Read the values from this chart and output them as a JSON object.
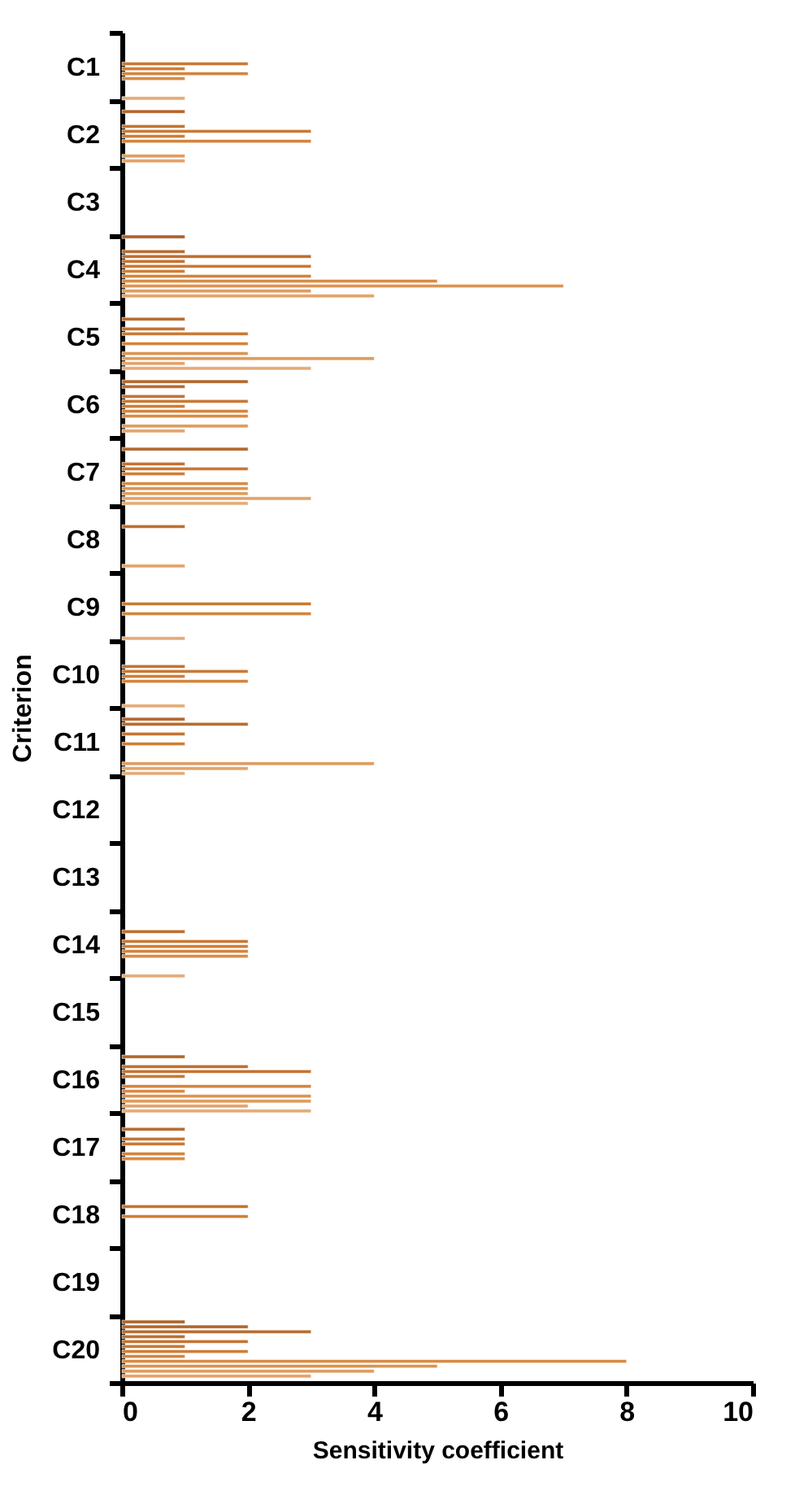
{
  "chart_data": {
    "type": "bar",
    "orientation": "horizontal",
    "xlabel": "Sensitivity coefficient",
    "ylabel": "Criterion",
    "categories": [
      "C1",
      "C2",
      "C3",
      "C4",
      "C5",
      "C6",
      "C7",
      "C8",
      "C9",
      "C10",
      "C11",
      "C12",
      "C13",
      "C14",
      "C15",
      "C16",
      "C17",
      "C18",
      "C19",
      "C20"
    ],
    "xlim": [
      0,
      10
    ],
    "xticks": [
      0,
      2,
      4,
      6,
      8,
      10
    ],
    "grid": false,
    "legend": false,
    "series": [
      {
        "color": "#a9602b",
        "values": [
          null,
          null,
          null,
          1,
          null,
          null,
          null,
          null,
          null,
          null,
          null,
          null,
          null,
          null,
          null,
          null,
          null,
          null,
          null,
          null
        ]
      },
      {
        "color": "#ad632c",
        "values": [
          null,
          null,
          null,
          null,
          null,
          null,
          null,
          null,
          null,
          null,
          null,
          null,
          null,
          null,
          null,
          null,
          null,
          null,
          null,
          1
        ]
      },
      {
        "color": "#b2672d",
        "values": [
          null,
          1,
          null,
          null,
          null,
          2,
          2,
          null,
          null,
          null,
          1,
          null,
          null,
          null,
          null,
          1,
          null,
          null,
          null,
          2
        ]
      },
      {
        "color": "#b76b2e",
        "values": [
          null,
          null,
          null,
          1,
          1,
          1,
          null,
          null,
          null,
          null,
          2,
          null,
          null,
          null,
          null,
          null,
          1,
          null,
          null,
          3
        ]
      },
      {
        "color": "#bd6f30",
        "values": [
          null,
          null,
          null,
          3,
          null,
          null,
          null,
          1,
          null,
          null,
          null,
          null,
          null,
          1,
          null,
          2,
          null,
          null,
          null,
          1
        ]
      },
      {
        "color": "#c37432",
        "values": [
          null,
          1,
          null,
          1,
          1,
          1,
          1,
          null,
          null,
          1,
          1,
          null,
          null,
          null,
          null,
          3,
          1,
          2,
          null,
          2
        ]
      },
      {
        "color": "#c97934",
        "values": [
          2,
          3,
          null,
          3,
          2,
          2,
          2,
          null,
          3,
          2,
          null,
          null,
          null,
          2,
          null,
          1,
          1,
          null,
          null,
          1
        ]
      },
      {
        "color": "#cf7e37",
        "values": [
          1,
          1,
          null,
          1,
          null,
          1,
          1,
          null,
          null,
          1,
          1,
          null,
          null,
          2,
          null,
          null,
          null,
          2,
          null,
          2
        ]
      },
      {
        "color": "#d4843c",
        "values": [
          2,
          3,
          null,
          3,
          2,
          2,
          null,
          null,
          3,
          2,
          null,
          null,
          null,
          2,
          null,
          3,
          1,
          null,
          null,
          1
        ]
      },
      {
        "color": "#d88b45",
        "values": [
          1,
          null,
          null,
          5,
          null,
          2,
          2,
          null,
          null,
          null,
          null,
          null,
          null,
          2,
          null,
          1,
          1,
          null,
          null,
          8
        ]
      },
      {
        "color": "#db9350",
        "values": [
          null,
          null,
          null,
          7,
          2,
          null,
          2,
          null,
          null,
          null,
          null,
          null,
          null,
          null,
          null,
          3,
          null,
          null,
          null,
          5
        ]
      },
      {
        "color": "#de9b5d",
        "values": [
          null,
          1,
          null,
          3,
          4,
          2,
          2,
          null,
          null,
          null,
          4,
          null,
          null,
          null,
          null,
          3,
          null,
          null,
          null,
          4
        ]
      },
      {
        "color": "#e1a36a",
        "values": [
          null,
          1,
          null,
          4,
          1,
          1,
          3,
          1,
          null,
          null,
          2,
          null,
          null,
          null,
          null,
          2,
          null,
          null,
          null,
          3
        ]
      },
      {
        "color": "#e3ab78",
        "values": [
          1,
          null,
          null,
          null,
          3,
          null,
          2,
          null,
          1,
          1,
          1,
          null,
          null,
          1,
          null,
          3,
          null,
          null,
          null,
          null
        ]
      }
    ]
  }
}
